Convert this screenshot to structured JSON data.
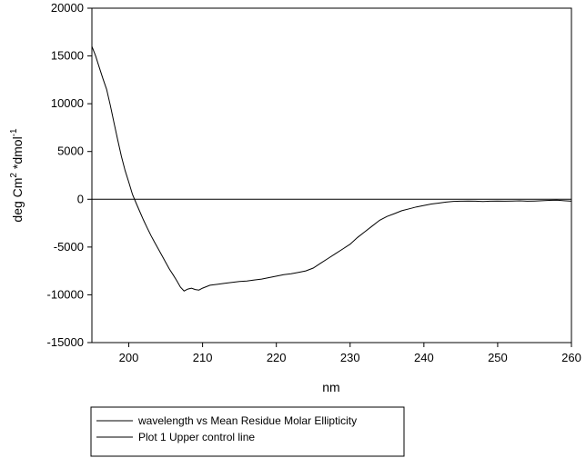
{
  "chart_data": {
    "type": "line",
    "xlabel": "nm",
    "ylabel": "deg Cm2 *dmol-1",
    "ylabel_parts": {
      "a": "deg Cm",
      "sup1": "2",
      "b": " *dmol",
      "sup2": "-1"
    },
    "xlim": [
      195,
      260
    ],
    "ylim": [
      -15000,
      20000
    ],
    "x_ticks": [
      "200",
      "210",
      "220",
      "230",
      "240",
      "250",
      "260"
    ],
    "y_ticks": [
      "-15000",
      "-10000",
      "-5000",
      "0",
      "5000",
      "10000",
      "15000",
      "20000"
    ],
    "grid": false,
    "legend_position": "bottom",
    "series": [
      {
        "name": "wavelength vs Mean Residue Molar Ellipticity",
        "x": [
          195,
          195.5,
          196,
          196.5,
          197,
          197.5,
          198,
          198.5,
          199,
          199.5,
          200,
          200.5,
          201,
          201.5,
          202,
          202.5,
          203,
          203.5,
          204,
          204.5,
          205,
          205.5,
          206,
          206.5,
          207,
          207.5,
          208,
          208.5,
          209,
          209.5,
          210,
          211,
          212,
          213,
          214,
          215,
          216,
          217,
          218,
          219,
          220,
          221,
          222,
          223,
          224,
          225,
          226,
          227,
          228,
          229,
          230,
          231,
          232,
          233,
          234,
          235,
          236,
          237,
          238,
          239,
          240,
          241,
          242,
          243,
          244,
          245,
          246,
          247,
          248,
          249,
          250,
          251,
          252,
          253,
          254,
          255,
          256,
          257,
          258,
          259,
          260
        ],
        "y": [
          16000,
          15000,
          13800,
          12600,
          11500,
          9800,
          8000,
          6200,
          4500,
          3000,
          1800,
          500,
          -400,
          -1300,
          -2200,
          -3000,
          -3800,
          -4500,
          -5200,
          -5900,
          -6600,
          -7300,
          -7900,
          -8500,
          -9200,
          -9600,
          -9400,
          -9300,
          -9450,
          -9500,
          -9300,
          -9000,
          -8900,
          -8800,
          -8700,
          -8600,
          -8550,
          -8450,
          -8350,
          -8200,
          -8050,
          -7900,
          -7800,
          -7650,
          -7500,
          -7200,
          -6700,
          -6200,
          -5700,
          -5200,
          -4700,
          -4000,
          -3400,
          -2800,
          -2200,
          -1800,
          -1500,
          -1200,
          -1000,
          -800,
          -650,
          -500,
          -400,
          -300,
          -220,
          -200,
          -180,
          -200,
          -230,
          -200,
          -180,
          -200,
          -180,
          -160,
          -200,
          -180,
          -150,
          -120,
          -100,
          -150,
          -200
        ]
      },
      {
        "name": "Plot 1 Upper control line",
        "x": [
          195,
          260
        ],
        "y": [
          0,
          0
        ]
      }
    ]
  },
  "legend": {
    "items": [
      "wavelength vs Mean Residue Molar Ellipticity",
      "Plot 1 Upper control line"
    ]
  }
}
